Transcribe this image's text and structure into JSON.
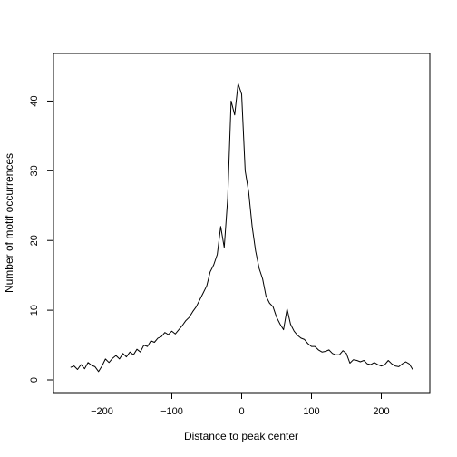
{
  "chart_data": {
    "type": "line",
    "xlabel": "Distance to peak center",
    "ylabel": "Number of motif occurrences",
    "xlim": [
      -250,
      250
    ],
    "ylim": [
      0,
      45
    ],
    "xticks": [
      -200,
      -100,
      0,
      100,
      200
    ],
    "xtick_labels": [
      "−200",
      "−100",
      "0",
      "100",
      "200"
    ],
    "yticks": [
      0,
      10,
      20,
      30,
      40
    ],
    "ytick_labels": [
      "0",
      "10",
      "20",
      "30",
      "40"
    ],
    "grid": false,
    "series": [
      {
        "color": "#000000",
        "x": [
          -245,
          -240,
          -235,
          -230,
          -225,
          -220,
          -215,
          -210,
          -205,
          -200,
          -195,
          -190,
          -185,
          -180,
          -175,
          -170,
          -165,
          -160,
          -155,
          -150,
          -145,
          -140,
          -135,
          -130,
          -125,
          -120,
          -115,
          -110,
          -105,
          -100,
          -95,
          -90,
          -85,
          -80,
          -75,
          -70,
          -65,
          -60,
          -55,
          -50,
          -45,
          -40,
          -35,
          -30,
          -25,
          -20,
          -15,
          -10,
          -5,
          0,
          5,
          10,
          15,
          20,
          25,
          30,
          35,
          40,
          45,
          50,
          55,
          60,
          65,
          70,
          75,
          80,
          85,
          90,
          95,
          100,
          105,
          110,
          115,
          120,
          125,
          130,
          135,
          140,
          145,
          150,
          155,
          160,
          165,
          170,
          175,
          180,
          185,
          190,
          195,
          200,
          205,
          210,
          215,
          220,
          225,
          230,
          235,
          240,
          245
        ],
        "y": [
          1.8,
          2.0,
          1.5,
          2.2,
          1.6,
          2.5,
          2.1,
          1.9,
          1.2,
          2.0,
          3.0,
          2.5,
          3.1,
          3.5,
          3.0,
          3.8,
          3.3,
          4.0,
          3.6,
          4.4,
          4.0,
          5.0,
          4.8,
          5.6,
          5.4,
          6.0,
          6.2,
          6.8,
          6.5,
          7.0,
          6.6,
          7.2,
          7.8,
          8.5,
          9.0,
          9.8,
          10.5,
          11.5,
          12.5,
          13.5,
          15.5,
          16.5,
          18.0,
          22.0,
          19.0,
          26.0,
          40.0,
          38.0,
          42.5,
          41.0,
          30.0,
          27.0,
          22.0,
          18.5,
          16.0,
          14.5,
          12.0,
          11.0,
          10.5,
          9.0,
          8.0,
          7.2,
          10.2,
          8.0,
          7.0,
          6.4,
          6.0,
          5.8,
          5.2,
          4.8,
          4.8,
          4.3,
          4.0,
          4.1,
          4.3,
          3.8,
          3.6,
          3.6,
          4.2,
          3.8,
          2.4,
          2.9,
          2.8,
          2.6,
          2.8,
          2.3,
          2.2,
          2.5,
          2.2,
          2.0,
          2.2,
          2.8,
          2.3,
          2.0,
          1.9,
          2.3,
          2.6,
          2.3,
          1.5
        ]
      }
    ]
  }
}
